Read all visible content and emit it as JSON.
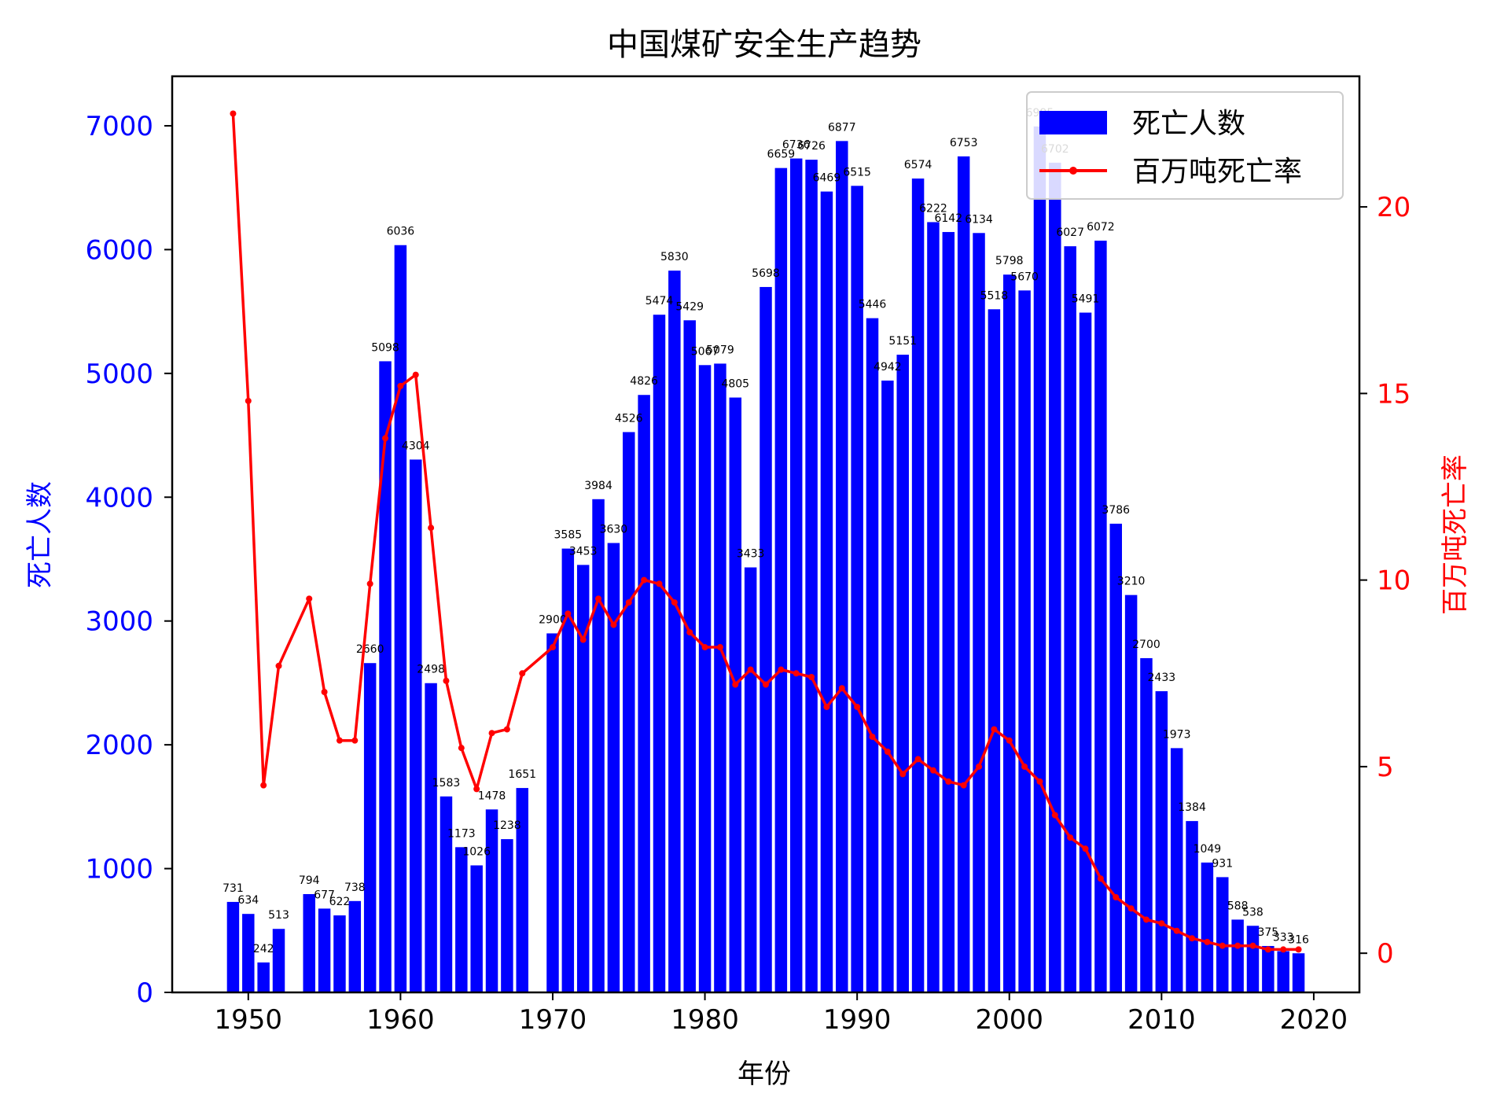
{
  "chart_data": {
    "type": "bar",
    "title": "中国煤矿安全生产趋势",
    "xlabel": "年份",
    "ylabel_left": "死亡人数",
    "ylabel_right": "百万吨死亡率",
    "xlim": [
      1945,
      2023
    ],
    "ylim_left": [
      0,
      7400
    ],
    "ylim_right": [
      -1.05,
      23.5
    ],
    "x_ticks": [
      1950,
      1960,
      1970,
      1980,
      1990,
      2000,
      2010,
      2020
    ],
    "y_left_ticks": [
      0,
      1000,
      2000,
      3000,
      4000,
      5000,
      6000,
      7000
    ],
    "y_right_ticks": [
      0,
      5,
      10,
      15,
      20
    ],
    "grid": false,
    "legend_position": "top-right",
    "series": [
      {
        "name": "死亡人数",
        "kind": "bar",
        "color": "#0000ff",
        "x": [
          1949,
          1950,
          1951,
          1952,
          1954,
          1955,
          1956,
          1957,
          1958,
          1959,
          1960,
          1961,
          1962,
          1963,
          1964,
          1965,
          1966,
          1967,
          1968,
          1970,
          1971,
          1972,
          1973,
          1974,
          1975,
          1976,
          1977,
          1978,
          1979,
          1980,
          1981,
          1982,
          1983,
          1984,
          1985,
          1986,
          1987,
          1988,
          1989,
          1990,
          1991,
          1992,
          1993,
          1994,
          1995,
          1996,
          1997,
          1998,
          1999,
          2000,
          2001,
          2002,
          2003,
          2004,
          2005,
          2006,
          2007,
          2008,
          2009,
          2010,
          2011,
          2012,
          2013,
          2014,
          2015,
          2016,
          2017,
          2018,
          2019
        ],
        "values": [
          731,
          634,
          242,
          513,
          794,
          677,
          622,
          738,
          2660,
          5098,
          6036,
          4304,
          2498,
          1583,
          1173,
          1026,
          1478,
          1238,
          1651,
          2900,
          3585,
          3453,
          3984,
          3630,
          4526,
          4826,
          5474,
          5830,
          5429,
          5067,
          5079,
          4805,
          3433,
          5698,
          6659,
          6736,
          6726,
          6469,
          6877,
          6515,
          5446,
          4942,
          5151,
          6574,
          6222,
          6142,
          6753,
          6134,
          5518,
          5798,
          5670,
          6995,
          6702,
          6027,
          5491,
          6072,
          3786,
          3210,
          2700,
          2433,
          1973,
          1384,
          1049,
          931,
          588,
          538,
          375,
          333,
          316
        ]
      },
      {
        "name": "百万吨死亡率",
        "kind": "line",
        "color": "#ff0000",
        "x": [
          1949,
          1950,
          1951,
          1952,
          1954,
          1955,
          1956,
          1957,
          1958,
          1959,
          1960,
          1961,
          1962,
          1963,
          1964,
          1965,
          1966,
          1967,
          1968,
          1970,
          1971,
          1972,
          1973,
          1974,
          1975,
          1976,
          1977,
          1978,
          1979,
          1980,
          1981,
          1982,
          1983,
          1984,
          1985,
          1986,
          1987,
          1988,
          1989,
          1990,
          1991,
          1992,
          1993,
          1994,
          1995,
          1996,
          1997,
          1998,
          1999,
          2000,
          2001,
          2002,
          2003,
          2004,
          2005,
          2006,
          2007,
          2008,
          2009,
          2010,
          2011,
          2012,
          2013,
          2014,
          2015,
          2016,
          2017,
          2018,
          2019
        ],
        "values": [
          22.5,
          14.8,
          4.5,
          7.7,
          9.5,
          7.0,
          5.7,
          5.7,
          9.9,
          13.8,
          15.2,
          15.5,
          11.4,
          7.3,
          5.5,
          4.4,
          5.9,
          6.0,
          7.5,
          8.2,
          9.1,
          8.4,
          9.5,
          8.8,
          9.4,
          10.0,
          9.9,
          9.4,
          8.6,
          8.2,
          8.2,
          7.2,
          7.6,
          7.2,
          7.6,
          7.5,
          7.4,
          6.6,
          7.1,
          6.6,
          5.8,
          5.4,
          4.8,
          5.2,
          4.9,
          4.6,
          4.5,
          5.0,
          6.0,
          5.7,
          5.0,
          4.6,
          3.7,
          3.1,
          2.8,
          2.0,
          1.5,
          1.2,
          0.9,
          0.8,
          0.6,
          0.4,
          0.3,
          0.2,
          0.2,
          0.2,
          0.1,
          0.1,
          0.1
        ]
      }
    ]
  },
  "colors": {
    "bars": "#0000ff",
    "line": "#ff0000",
    "left_axis": "#0000ff",
    "right_axis": "#ff0000",
    "frame": "#000000"
  }
}
